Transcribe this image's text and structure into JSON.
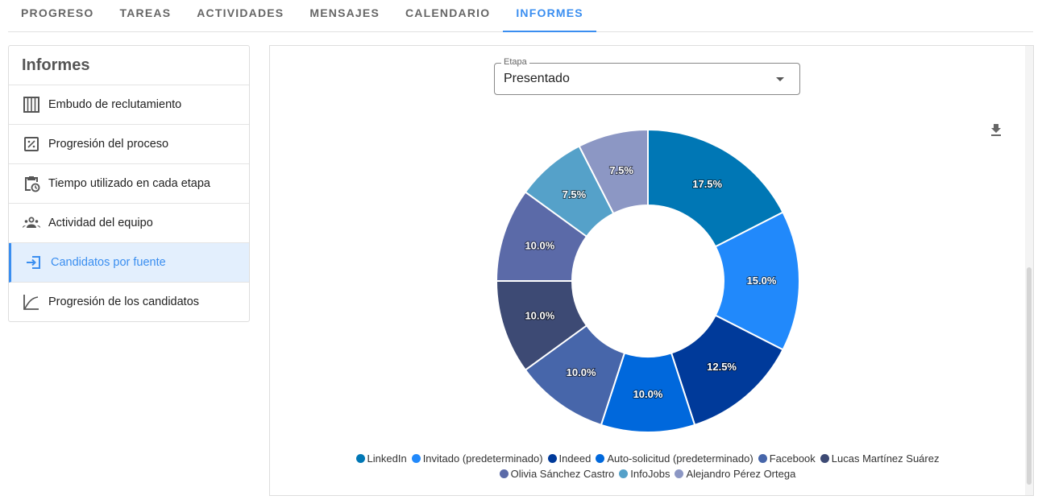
{
  "tabs": [
    "PROGRESO",
    "TAREAS",
    "ACTIVIDADES",
    "MENSAJES",
    "CALENDARIO",
    "INFORMES"
  ],
  "active_tab": 5,
  "sidebar": {
    "title": "Informes",
    "items": [
      {
        "label": "Embudo de reclutamiento",
        "icon": "columns-icon"
      },
      {
        "label": "Progresión del proceso",
        "icon": "percent-box-icon"
      },
      {
        "label": "Tiempo utilizado en cada etapa",
        "icon": "clipboard-clock-icon"
      },
      {
        "label": "Actividad del equipo",
        "icon": "team-icon"
      },
      {
        "label": "Candidatos por fuente",
        "icon": "login-icon"
      },
      {
        "label": "Progresión de los candidatos",
        "icon": "line-chart-icon"
      }
    ],
    "active": 4
  },
  "filter": {
    "label": "Etapa",
    "value": "Presentado"
  },
  "chart_data": {
    "type": "pie",
    "donut": true,
    "categories": [
      "LinkedIn",
      "Invitado (predeterminado)",
      "Indeed",
      "Auto-solicitud (predeterminado)",
      "Facebook",
      "Lucas Martínez Suárez",
      "Olivia Sánchez Castro",
      "InfoJobs",
      "Alejandro Pérez Ortega"
    ],
    "values": [
      17.5,
      15.0,
      12.5,
      10.0,
      10.0,
      10.0,
      10.0,
      7.5,
      7.5
    ],
    "labels": [
      "17.5%",
      "15.0%",
      "12.5%",
      "10.0%",
      "10.0%",
      "10.0%",
      "10.0%",
      "7.5%",
      "7.5%"
    ],
    "colors": [
      "#0077b5",
      "#2189fb",
      "#003a9a",
      "#0068dc",
      "#4766aa",
      "#3d4a74",
      "#5b6aa8",
      "#55a1c9",
      "#8c97c4"
    ],
    "legend": "bottom"
  }
}
